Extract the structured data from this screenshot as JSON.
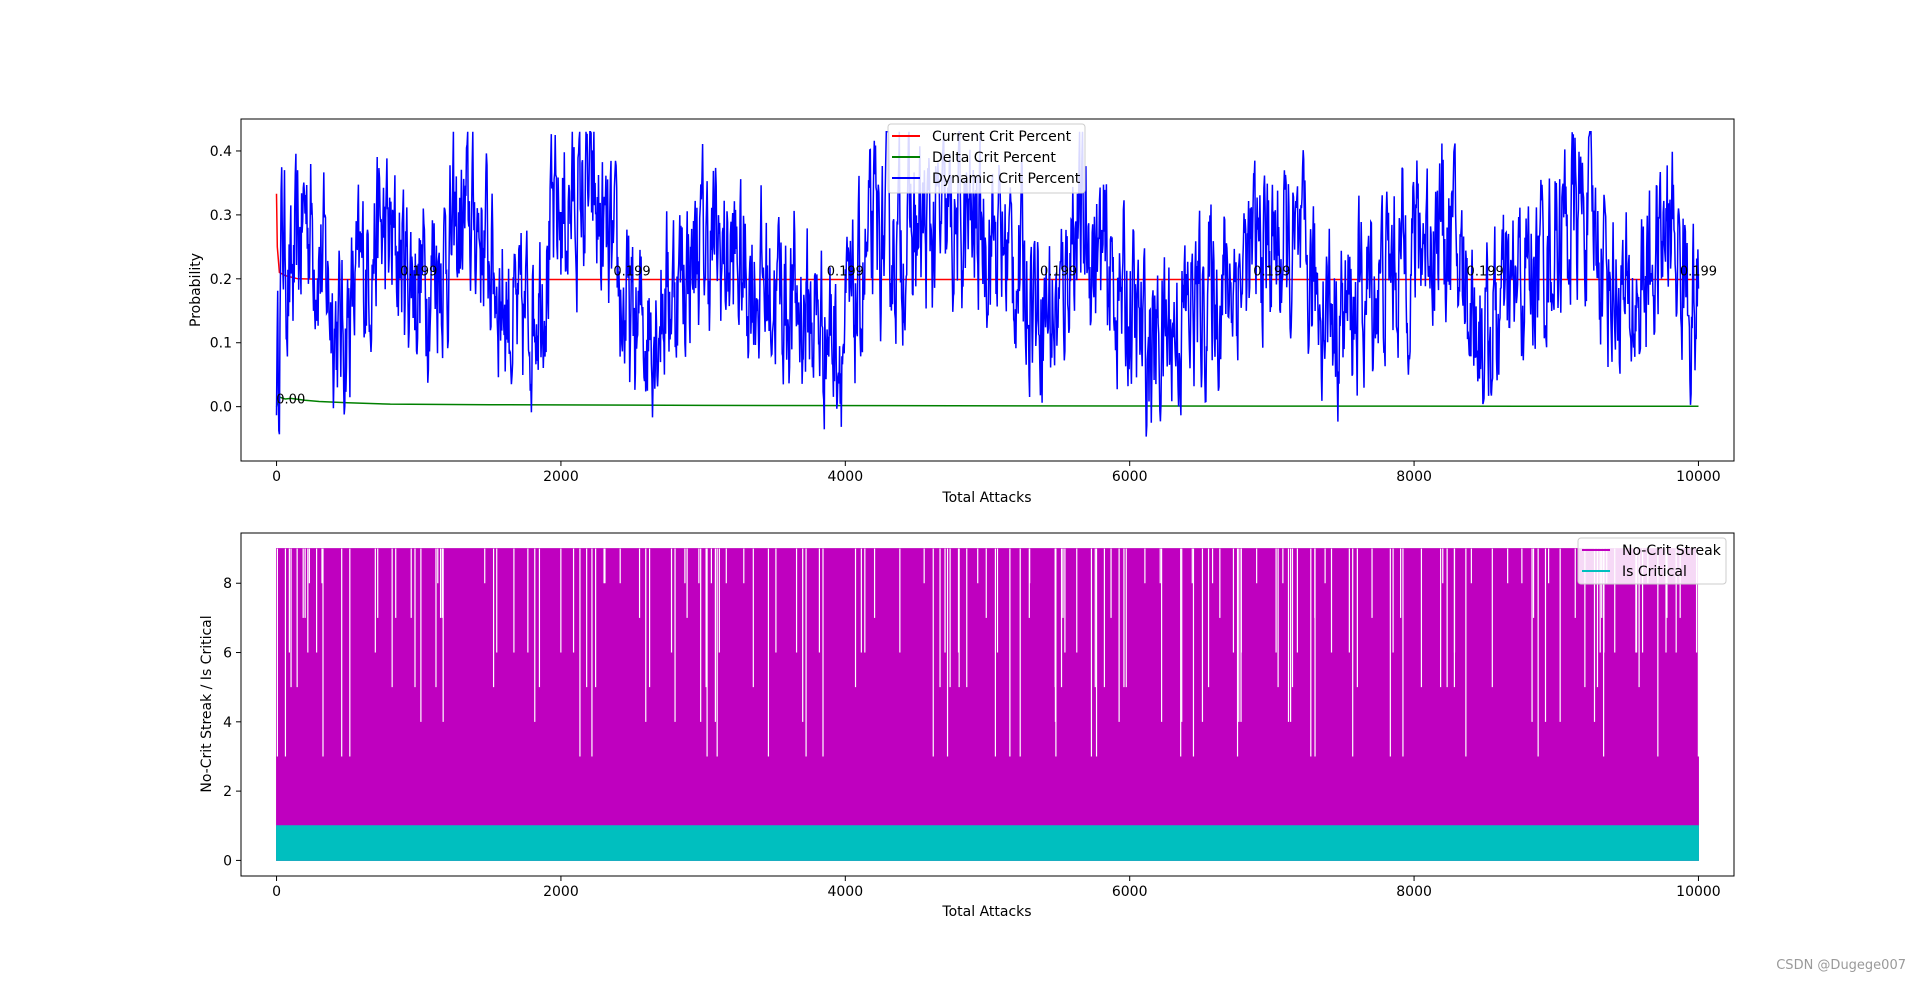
{
  "watermark": "CSDN @Dugege007",
  "chart_data": [
    {
      "type": "line",
      "xlabel": "Total Attacks",
      "ylabel": "Probability",
      "xlim": [
        -250,
        10250
      ],
      "ylim": [
        -0.085,
        0.45
      ],
      "xticks": [
        0,
        2000,
        4000,
        6000,
        8000,
        10000
      ],
      "yticks": [
        0.0,
        0.1,
        0.2,
        0.3,
        0.4
      ],
      "ytick_labels": [
        "0.0",
        "0.1",
        "0.2",
        "0.3",
        "0.4"
      ],
      "legend_position": "top-center",
      "series": [
        {
          "name": "Current Crit Percent",
          "color": "#ff0000",
          "x": [
            0,
            5,
            20,
            60,
            150,
            400,
            1000,
            2000,
            4000,
            6000,
            8000,
            10000
          ],
          "values": [
            0.333,
            0.25,
            0.21,
            0.205,
            0.2,
            0.199,
            0.199,
            0.199,
            0.199,
            0.199,
            0.199,
            0.199
          ]
        },
        {
          "name": "Delta Crit Percent",
          "color": "#008000",
          "x": [
            0,
            20,
            60,
            100,
            200,
            300,
            500,
            800,
            1500,
            3000,
            6000,
            10000
          ],
          "values": [
            0.0,
            0.015,
            0.012,
            0.013,
            0.01,
            0.008,
            0.006,
            0.004,
            0.003,
            0.002,
            0.001,
            0.0005
          ]
        },
        {
          "name": "Dynamic Crit Percent",
          "color": "#0000ff",
          "noise": true,
          "x": [
            0,
            10,
            30,
            100,
            200,
            450,
            700,
            1000,
            1400,
            1700,
            2000,
            2200,
            2500,
            3000,
            4000,
            4200,
            5000,
            5500,
            5600,
            6000,
            6100,
            7000,
            7500,
            8000,
            8200,
            8500,
            9000,
            9200,
            9500,
            9800,
            9900,
            10000
          ],
          "values": [
            0.05,
            -0.05,
            0.36,
            0.15,
            0.41,
            0.05,
            0.33,
            0.2,
            0.37,
            0.05,
            0.38,
            0.42,
            0.05,
            0.3,
            0.05,
            0.3,
            0.34,
            0.1,
            0.37,
            0.12,
            0.02,
            0.3,
            0.1,
            0.3,
            0.36,
            0.05,
            0.32,
            0.39,
            0.1,
            0.34,
            0.2,
            0.1
          ]
        }
      ],
      "annotations": [
        {
          "x": 1000,
          "y": 0.205,
          "text": "0.199"
        },
        {
          "x": 2500,
          "y": 0.205,
          "text": "0.199"
        },
        {
          "x": 4000,
          "y": 0.205,
          "text": "0.199"
        },
        {
          "x": 5500,
          "y": 0.205,
          "text": "0.199"
        },
        {
          "x": 7000,
          "y": 0.205,
          "text": "0.199"
        },
        {
          "x": 8500,
          "y": 0.205,
          "text": "0.199"
        },
        {
          "x": 10000,
          "y": 0.205,
          "text": "0.199"
        },
        {
          "x": 100,
          "y": 0.005,
          "text": "0.00"
        }
      ]
    },
    {
      "type": "line",
      "xlabel": "Total Attacks",
      "ylabel": "No-Crit Streak / Is Critical",
      "xlim": [
        -250,
        10250
      ],
      "ylim": [
        -0.45,
        9.45
      ],
      "xticks": [
        0,
        2000,
        4000,
        6000,
        8000,
        10000
      ],
      "yticks": [
        0,
        2,
        4,
        6,
        8
      ],
      "ytick_labels": [
        "0",
        "2",
        "4",
        "6",
        "8"
      ],
      "legend_position": "top-right",
      "series": [
        {
          "name": "No-Crit Streak",
          "color": "#bf00bf",
          "fill": true,
          "x": [
            0,
            10000
          ],
          "values": [
            0,
            9
          ],
          "range": [
            0,
            9
          ]
        },
        {
          "name": "Is Critical",
          "color": "#00bfbf",
          "fill": true,
          "x": [
            0,
            10000
          ],
          "values": [
            0,
            1
          ],
          "range": [
            0,
            1
          ]
        }
      ]
    }
  ]
}
